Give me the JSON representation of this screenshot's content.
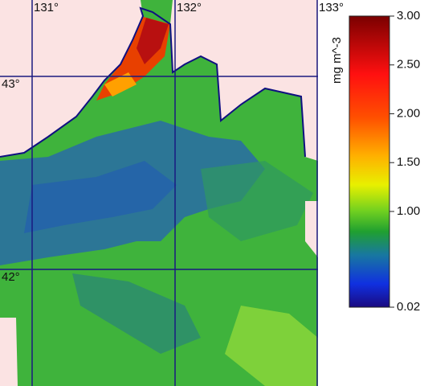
{
  "map": {
    "graticule": {
      "lon_labels": [
        "131°",
        "132°",
        "133°"
      ],
      "lat_labels": [
        "43°",
        "42°"
      ]
    },
    "colorbar": {
      "label": "mg m^-3",
      "ticks": [
        {
          "value": 3,
          "label": "3.00"
        },
        {
          "value": 2.5,
          "label": "2.50"
        },
        {
          "value": 2,
          "label": "2.00"
        },
        {
          "value": 1.5,
          "label": "1.50"
        },
        {
          "value": 1,
          "label": "1.00"
        },
        0.02
      ]
    }
  }
}
